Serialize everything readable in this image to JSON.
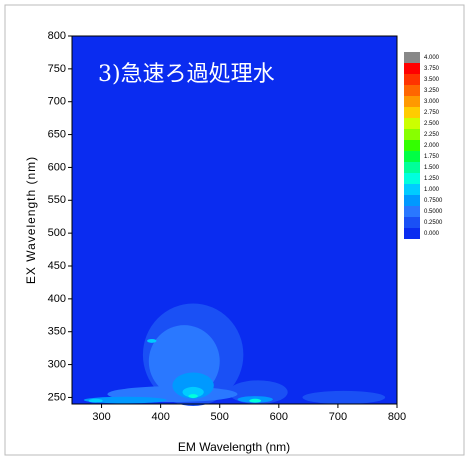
{
  "chart_data": {
    "type": "contour",
    "annotation": "3)急速ろ過処理水",
    "x_label": "EM Wavelength (nm)",
    "y_label": "EX Wavelength (nm)",
    "xlim": [
      250,
      800
    ],
    "xticks": [
      300,
      400,
      500,
      600,
      700,
      800
    ],
    "ylim": [
      240,
      800
    ],
    "yticks": [
      250,
      300,
      350,
      400,
      450,
      500,
      550,
      600,
      650,
      700,
      750,
      800
    ],
    "levels": [
      {
        "value": 4,
        "label": "4.000"
      },
      {
        "value": 3.75,
        "label": "3.750"
      },
      {
        "value": 3.5,
        "label": "3.500"
      },
      {
        "value": 3.25,
        "label": "3.250"
      },
      {
        "value": 3,
        "label": "3.000"
      },
      {
        "value": 2.75,
        "label": "2.750"
      },
      {
        "value": 2.5,
        "label": "2.500"
      },
      {
        "value": 2.25,
        "label": "2.250"
      },
      {
        "value": 2,
        "label": "2.000"
      },
      {
        "value": 1.75,
        "label": "1.750"
      },
      {
        "value": 1.5,
        "label": "1.500"
      },
      {
        "value": 1.25,
        "label": "1.250"
      },
      {
        "value": 1,
        "label": "1.000"
      },
      {
        "value": 0.75,
        "label": "0.7500"
      },
      {
        "value": 0.5,
        "label": "0.5000"
      },
      {
        "value": 0.25,
        "label": "0.2500"
      },
      {
        "value": 0,
        "label": "0.000"
      }
    ],
    "level_colors": [
      "#888888",
      "#ff0000",
      "#ff3300",
      "#ff6600",
      "#ff9900",
      "#ffcc00",
      "#ccff00",
      "#88ff00",
      "#33ff00",
      "#00ff44",
      "#00ff99",
      "#00ffdd",
      "#00ccff",
      "#0099ff",
      "#2a78ff",
      "#1a50f5",
      "#0a2cf0"
    ]
  }
}
